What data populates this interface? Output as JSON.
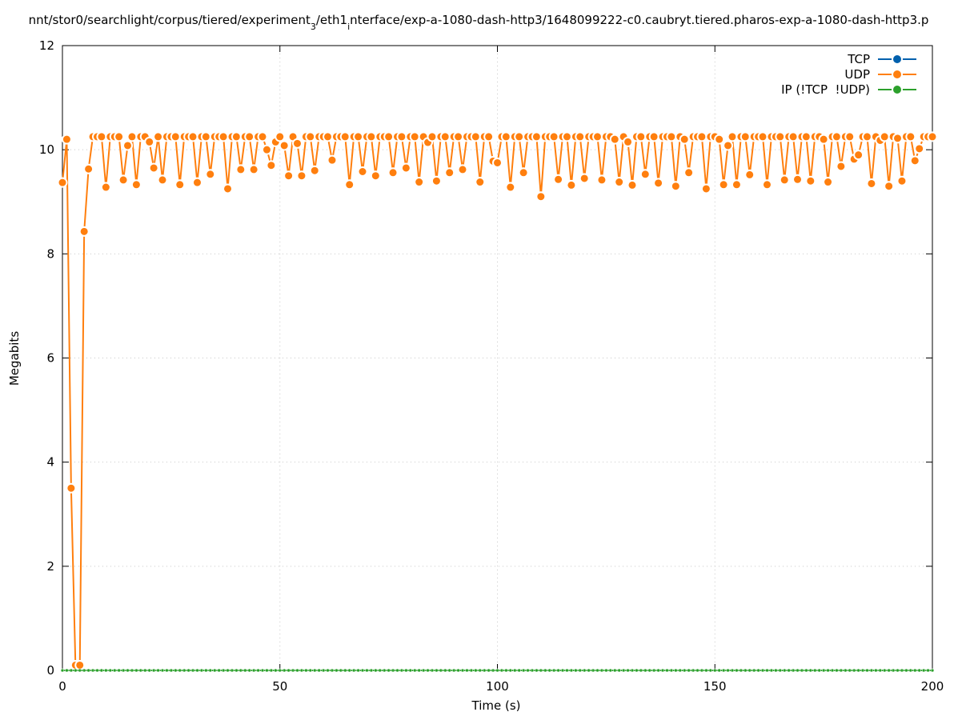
{
  "chart_data": {
    "type": "line",
    "title": [
      "nnt/stor0/searchlight/corpus/tiered/experiment",
      "3",
      "/eth1",
      "i",
      "nterface/exp-a-1080-dash-http3/1648099222-c0.caubryt.tiered.pharos-exp-a-1080-dash-http3.p"
    ],
    "xlabel": "Time (s)",
    "ylabel": "Megabits",
    "xlim": [
      0,
      200
    ],
    "xticks": [
      0,
      50,
      100,
      150,
      200
    ],
    "ylim": [
      0,
      12
    ],
    "yticks": [
      0,
      2,
      4,
      6,
      8,
      10,
      12
    ],
    "grid": true,
    "legend": "top-right",
    "x": [
      0,
      1,
      2,
      3,
      4,
      5,
      6,
      7,
      8,
      9,
      10,
      11,
      12,
      13,
      14,
      15,
      16,
      17,
      18,
      19,
      20,
      21,
      22,
      23,
      24,
      25,
      26,
      27,
      28,
      29,
      30,
      31,
      32,
      33,
      34,
      35,
      36,
      37,
      38,
      39,
      40,
      41,
      42,
      43,
      44,
      45,
      46,
      47,
      48,
      49,
      50,
      51,
      52,
      53,
      54,
      55,
      56,
      57,
      58,
      59,
      60,
      61,
      62,
      63,
      64,
      65,
      66,
      67,
      68,
      69,
      70,
      71,
      72,
      73,
      74,
      75,
      76,
      77,
      78,
      79,
      80,
      81,
      82,
      83,
      84,
      85,
      86,
      87,
      88,
      89,
      90,
      91,
      92,
      93,
      94,
      95,
      96,
      97,
      98,
      99,
      100,
      101,
      102,
      103,
      104,
      105,
      106,
      107,
      108,
      109,
      110,
      111,
      112,
      113,
      114,
      115,
      116,
      117,
      118,
      119,
      120,
      121,
      122,
      123,
      124,
      125,
      126,
      127,
      128,
      129,
      130,
      131,
      132,
      133,
      134,
      135,
      136,
      137,
      138,
      139,
      140,
      141,
      142,
      143,
      144,
      145,
      146,
      147,
      148,
      149,
      150,
      151,
      152,
      153,
      154,
      155,
      156,
      157,
      158,
      159,
      160,
      161,
      162,
      163,
      164,
      165,
      166,
      167,
      168,
      169,
      170,
      171,
      172,
      173,
      174,
      175,
      176,
      177,
      178,
      179,
      180,
      181,
      182,
      183,
      184,
      185,
      186,
      187,
      188,
      189,
      190,
      191,
      192,
      193,
      194,
      195,
      196,
      197,
      198,
      199,
      200
    ],
    "series": [
      {
        "name": "TCP",
        "color": "#0060ad",
        "values": [
          0,
          0,
          0,
          0,
          0,
          0,
          0,
          0,
          0,
          0,
          0,
          0,
          0,
          0,
          0,
          0,
          0,
          0,
          0,
          0,
          0,
          0,
          0,
          0,
          0,
          0,
          0,
          0,
          0,
          0,
          0,
          0,
          0,
          0,
          0,
          0,
          0,
          0,
          0,
          0,
          0,
          0,
          0,
          0,
          0,
          0,
          0,
          0,
          0,
          0,
          0,
          0,
          0,
          0,
          0,
          0,
          0,
          0,
          0,
          0,
          0,
          0,
          0,
          0,
          0,
          0,
          0,
          0,
          0,
          0,
          0,
          0,
          0,
          0,
          0,
          0,
          0,
          0,
          0,
          0,
          0,
          0,
          0,
          0,
          0,
          0,
          0,
          0,
          0,
          0,
          0,
          0,
          0,
          0,
          0,
          0,
          0,
          0,
          0,
          0,
          0,
          0,
          0,
          0,
          0,
          0,
          0,
          0,
          0,
          0,
          0,
          0,
          0,
          0,
          0,
          0,
          0,
          0,
          0,
          0,
          0,
          0,
          0,
          0,
          0,
          0,
          0,
          0,
          0,
          0,
          0,
          0,
          0,
          0,
          0,
          0,
          0,
          0,
          0,
          0,
          0,
          0,
          0,
          0,
          0,
          0,
          0,
          0,
          0,
          0,
          0,
          0,
          0,
          0,
          0,
          0,
          0,
          0,
          0,
          0,
          0,
          0,
          0,
          0,
          0,
          0,
          0,
          0,
          0,
          0,
          0,
          0,
          0,
          0,
          0,
          0,
          0,
          0,
          0,
          0,
          0,
          0,
          0,
          0,
          0,
          0,
          0,
          0,
          0,
          0,
          0,
          0,
          0,
          0,
          0,
          0,
          0,
          0,
          0,
          0,
          0
        ]
      },
      {
        "name": "UDP",
        "color": "#ff7f0e",
        "values": [
          9.37,
          10.2,
          3.5,
          0.1,
          0.1,
          8.43,
          9.63,
          10.25,
          10.25,
          10.25,
          9.28,
          10.25,
          10.25,
          10.25,
          9.42,
          10.08,
          10.25,
          9.33,
          10.25,
          10.25,
          10.15,
          9.65,
          10.25,
          9.42,
          10.25,
          10.25,
          10.25,
          9.33,
          10.25,
          10.25,
          10.25,
          9.37,
          10.25,
          10.25,
          9.53,
          10.25,
          10.25,
          10.25,
          9.25,
          10.25,
          10.25,
          9.62,
          10.25,
          10.25,
          9.62,
          10.25,
          10.25,
          10.0,
          9.7,
          10.15,
          10.25,
          10.08,
          9.5,
          10.25,
          10.12,
          9.5,
          10.25,
          10.25,
          9.6,
          10.25,
          10.25,
          10.25,
          9.8,
          10.25,
          10.25,
          10.25,
          9.33,
          10.25,
          10.25,
          9.58,
          10.25,
          10.25,
          9.5,
          10.25,
          10.25,
          10.25,
          9.56,
          10.25,
          10.25,
          9.65,
          10.25,
          10.25,
          9.38,
          10.25,
          10.14,
          10.25,
          9.4,
          10.25,
          10.25,
          9.56,
          10.25,
          10.25,
          9.62,
          10.25,
          10.25,
          10.25,
          9.38,
          10.25,
          10.25,
          9.78,
          9.75,
          10.25,
          10.25,
          9.28,
          10.25,
          10.25,
          9.56,
          10.25,
          10.25,
          10.25,
          9.1,
          10.25,
          10.25,
          10.25,
          9.43,
          10.25,
          10.25,
          9.32,
          10.25,
          10.25,
          9.45,
          10.25,
          10.25,
          10.25,
          9.42,
          10.25,
          10.25,
          10.2,
          9.38,
          10.25,
          10.15,
          9.32,
          10.25,
          10.25,
          9.53,
          10.25,
          10.25,
          9.36,
          10.25,
          10.25,
          10.25,
          9.3,
          10.25,
          10.2,
          9.56,
          10.25,
          10.25,
          10.25,
          9.25,
          10.25,
          10.25,
          10.2,
          9.33,
          10.08,
          10.25,
          9.33,
          10.25,
          10.25,
          9.52,
          10.25,
          10.25,
          10.25,
          9.33,
          10.25,
          10.25,
          10.25,
          9.42,
          10.25,
          10.25,
          9.43,
          10.25,
          10.25,
          9.4,
          10.25,
          10.25,
          10.2,
          9.38,
          10.25,
          10.25,
          9.68,
          10.25,
          10.25,
          9.82,
          9.9,
          10.25,
          10.25,
          9.35,
          10.25,
          10.18,
          10.25,
          9.3,
          10.25,
          10.22,
          9.4,
          10.25,
          10.25,
          9.79,
          10.02,
          10.25,
          10.25,
          10.25
        ]
      },
      {
        "name": "IP (!TCP  !UDP)",
        "color": "#2ca02c",
        "values": [
          0,
          0,
          0,
          0,
          0,
          0,
          0,
          0,
          0,
          0,
          0,
          0,
          0,
          0,
          0,
          0,
          0,
          0,
          0,
          0,
          0,
          0,
          0,
          0,
          0,
          0,
          0,
          0,
          0,
          0,
          0,
          0,
          0,
          0,
          0,
          0,
          0,
          0,
          0,
          0,
          0,
          0,
          0,
          0,
          0,
          0,
          0,
          0,
          0,
          0,
          0,
          0,
          0,
          0,
          0,
          0,
          0,
          0,
          0,
          0,
          0,
          0,
          0,
          0,
          0,
          0,
          0,
          0,
          0,
          0,
          0,
          0,
          0,
          0,
          0,
          0,
          0,
          0,
          0,
          0,
          0,
          0,
          0,
          0,
          0,
          0,
          0,
          0,
          0,
          0,
          0,
          0,
          0,
          0,
          0,
          0,
          0,
          0,
          0,
          0,
          0,
          0,
          0,
          0,
          0,
          0,
          0,
          0,
          0,
          0,
          0,
          0,
          0,
          0,
          0,
          0,
          0,
          0,
          0,
          0,
          0,
          0,
          0,
          0,
          0,
          0,
          0,
          0,
          0,
          0,
          0,
          0,
          0,
          0,
          0,
          0,
          0,
          0,
          0,
          0,
          0,
          0,
          0,
          0,
          0,
          0,
          0,
          0,
          0,
          0,
          0,
          0,
          0,
          0,
          0,
          0,
          0,
          0,
          0,
          0,
          0,
          0,
          0,
          0,
          0,
          0,
          0,
          0,
          0,
          0,
          0,
          0,
          0,
          0,
          0,
          0,
          0,
          0,
          0,
          0,
          0,
          0,
          0,
          0,
          0,
          0,
          0,
          0,
          0,
          0,
          0,
          0,
          0,
          0,
          0,
          0,
          0,
          0,
          0,
          0,
          0
        ]
      }
    ]
  }
}
